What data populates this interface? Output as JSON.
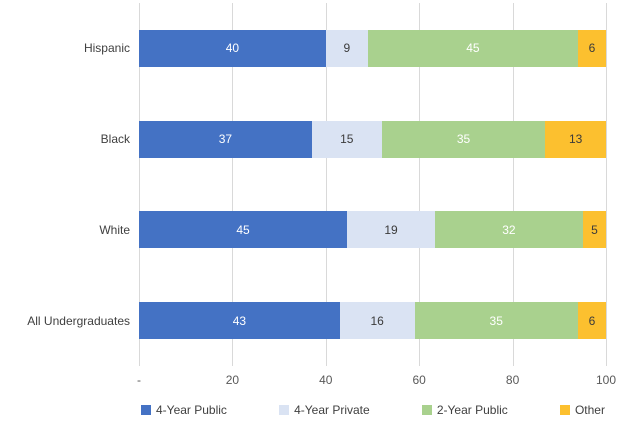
{
  "chart_data": {
    "type": "bar",
    "orientation": "horizontal",
    "stacked": true,
    "categories": [
      "Hispanic",
      "Black",
      "White",
      "All Undergraduates"
    ],
    "series": [
      {
        "name": "4-Year Public",
        "color": "#4472C4",
        "label_color": "#FFFFFF",
        "values": [
          40,
          37,
          45,
          43
        ]
      },
      {
        "name": "4-Year Private",
        "color": "#DAE3F3",
        "label_color": "#3B3B3B",
        "values": [
          9,
          15,
          19,
          16
        ]
      },
      {
        "name": "2-Year Public",
        "color": "#A9D18E",
        "label_color": "#FFFFFF",
        "values": [
          45,
          35,
          32,
          35
        ]
      },
      {
        "name": "Other",
        "color": "#FCC02F",
        "label_color": "#3B3B3B",
        "values": [
          6,
          13,
          5,
          6
        ]
      }
    ],
    "xlim": [
      0,
      100
    ],
    "xticks": {
      "values": [
        0,
        20,
        40,
        60,
        80,
        100
      ],
      "labels": [
        "-",
        "20",
        "40",
        "60",
        "80",
        "100"
      ]
    },
    "grid": "vertical",
    "legend_position": "bottom"
  },
  "colors": {
    "gridline": "#D9D9D9",
    "tick_label": "#595959",
    "category_label": "#404040",
    "background": "#FFFFFF"
  }
}
